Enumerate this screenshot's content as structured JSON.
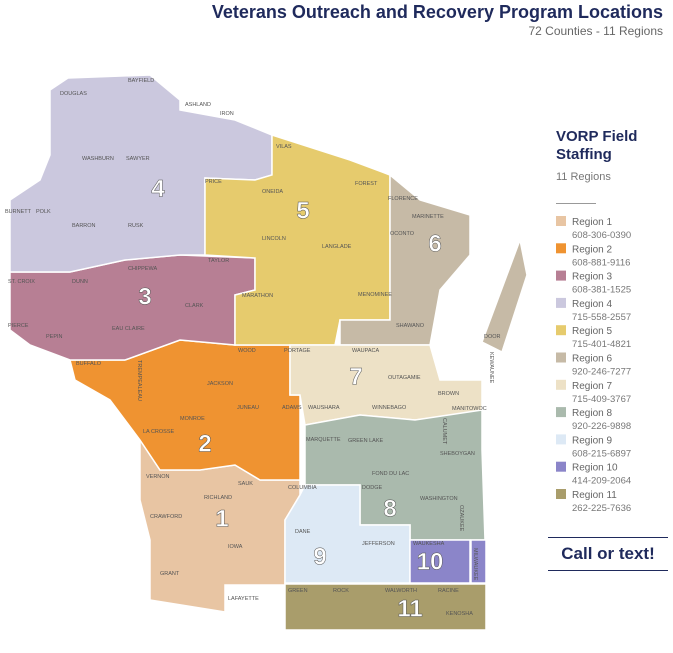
{
  "header": {
    "title": "Veterans Outreach and Recovery Program Locations",
    "subtitle": "72 Counties - 11 Regions"
  },
  "legend": {
    "title": "VORP Field Staffing",
    "subtitle": "11 Regions",
    "regions": [
      {
        "number": "1",
        "name": "Region 1",
        "phone": "608-306-0390",
        "color": "#e8c5a3"
      },
      {
        "number": "2",
        "name": "Region 2",
        "phone": "608-881-9116",
        "color": "#ef9331"
      },
      {
        "number": "3",
        "name": "Region 3",
        "phone": "608-381-1525",
        "color": "#b77f94"
      },
      {
        "number": "4",
        "name": "Region 4",
        "phone": "715-558-2557",
        "color": "#cbc8de"
      },
      {
        "number": "5",
        "name": "Region 5",
        "phone": "715-401-4821",
        "color": "#e6cb6d"
      },
      {
        "number": "6",
        "name": "Region 6",
        "phone": "920-246-7277",
        "color": "#c6baa6"
      },
      {
        "number": "7",
        "name": "Region 7",
        "phone": "715-409-3767",
        "color": "#ede1c6"
      },
      {
        "number": "8",
        "name": "Region 8",
        "phone": "920-226-9898",
        "color": "#aabaad"
      },
      {
        "number": "9",
        "name": "Region 9",
        "phone": "608-215-6897",
        "color": "#dde9f5"
      },
      {
        "number": "10",
        "name": "Region 10",
        "phone": "414-209-2064",
        "color": "#8b85c9"
      },
      {
        "number": "11",
        "name": "Region 11",
        "phone": "262-225-7636",
        "color": "#a99d6b"
      }
    ]
  },
  "map": {
    "counties": [
      "DOUGLAS",
      "BAYFIELD",
      "ASHLAND",
      "IRON",
      "VILAS",
      "FOREST",
      "FLORENCE",
      "MARINETTE",
      "WASHBURN",
      "SAWYER",
      "PRICE",
      "ONEIDA",
      "BURNETT",
      "POLK",
      "BARRON",
      "RUSK",
      "LINCOLN",
      "LANGLADE",
      "OCONTO",
      "TAYLOR",
      "ST. CROIX",
      "DUNN",
      "CHIPPEWA",
      "MARATHON",
      "MENOMINEE",
      "SHAWANO",
      "DOOR",
      "KEWAUNEE",
      "PIERCE",
      "PEPIN",
      "EAU CLAIRE",
      "CLARK",
      "BUFFALO",
      "TREMPEALEAU",
      "WOOD",
      "PORTAGE",
      "WAUPACA",
      "OUTAGAMIE",
      "BROWN",
      "JACKSON",
      "MONROE",
      "LA CROSSE",
      "JUNEAU",
      "ADAMS",
      "WAUSHARA",
      "WINNEBAGO",
      "CALUMET",
      "MANITOWOC",
      "MARQUETTE",
      "GREEN LAKE",
      "FOND DU LAC",
      "SHEBOYGAN",
      "VERNON",
      "SAUK",
      "RICHLAND",
      "CRAWFORD",
      "COLUMBIA",
      "DODGE",
      "WASHINGTON",
      "OZAUKEE",
      "DANE",
      "JEFFERSON",
      "IOWA",
      "GRANT",
      "WAUKESHA",
      "MILWAUKEE",
      "LAFAYETTE",
      "GREEN",
      "ROCK",
      "WALWORTH",
      "RACINE",
      "KENOSHA"
    ]
  },
  "call_to_action": "Call or text!"
}
